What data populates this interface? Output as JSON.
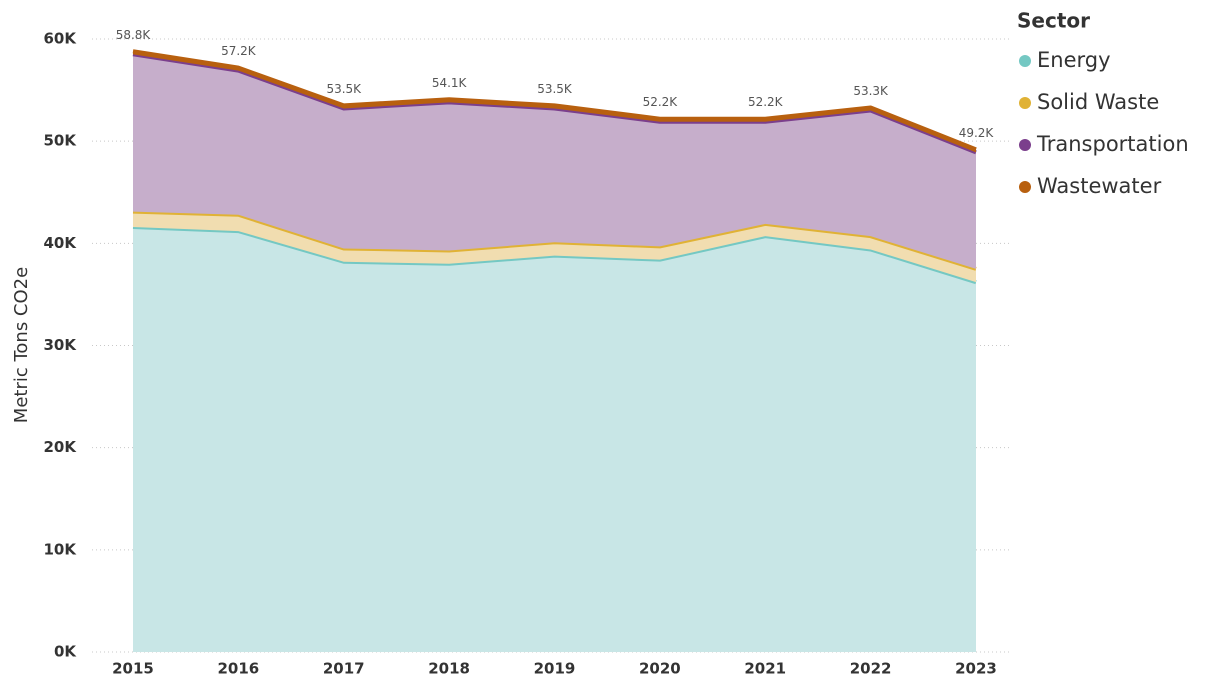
{
  "chart_data": {
    "type": "stacked_area",
    "y_label": "Metric Tons CO2e",
    "legend_title": "Sector",
    "categories": [
      "2015",
      "2016",
      "2017",
      "2018",
      "2019",
      "2020",
      "2021",
      "2022",
      "2023"
    ],
    "series": [
      {
        "name": "Energy",
        "color": "#74c8c3",
        "fill": "#c8e6e6",
        "values": [
          41600,
          41200,
          38200,
          38000,
          38800,
          38400,
          40700,
          39400,
          36200
        ]
      },
      {
        "name": "Solid Waste",
        "color": "#e0b235",
        "fill": "#f1ddb0",
        "values": [
          1500,
          1600,
          1300,
          1300,
          1300,
          1300,
          1200,
          1300,
          1300
        ]
      },
      {
        "name": "Transportation",
        "color": "#7b3f8c",
        "fill": "#c6aecb",
        "values": [
          15400,
          14100,
          13700,
          14500,
          13100,
          12200,
          10000,
          12300,
          11400
        ]
      },
      {
        "name": "Wastewater",
        "color": "#b8600f",
        "fill": "#b8600f",
        "values": [
          300,
          300,
          300,
          300,
          300,
          300,
          300,
          300,
          300
        ]
      }
    ],
    "totals": {
      "values": [
        58800,
        57200,
        53500,
        54100,
        53500,
        52200,
        52200,
        53300,
        49200
      ],
      "value_labels": [
        "58.8K",
        "57.2K",
        "53.5K",
        "54.1K",
        "53.5K",
        "52.2K",
        "52.2K",
        "53.3K",
        "49.2K"
      ]
    },
    "ylim": [
      0,
      60000
    ],
    "yticks": [
      {
        "value": 0,
        "label": "0K"
      },
      {
        "value": 10000,
        "label": "10K"
      },
      {
        "value": 20000,
        "label": "20K"
      },
      {
        "value": 30000,
        "label": "30K"
      },
      {
        "value": 40000,
        "label": "40K"
      },
      {
        "value": 50000,
        "label": "50K"
      },
      {
        "value": 60000,
        "label": "60K"
      }
    ],
    "grid": true
  }
}
